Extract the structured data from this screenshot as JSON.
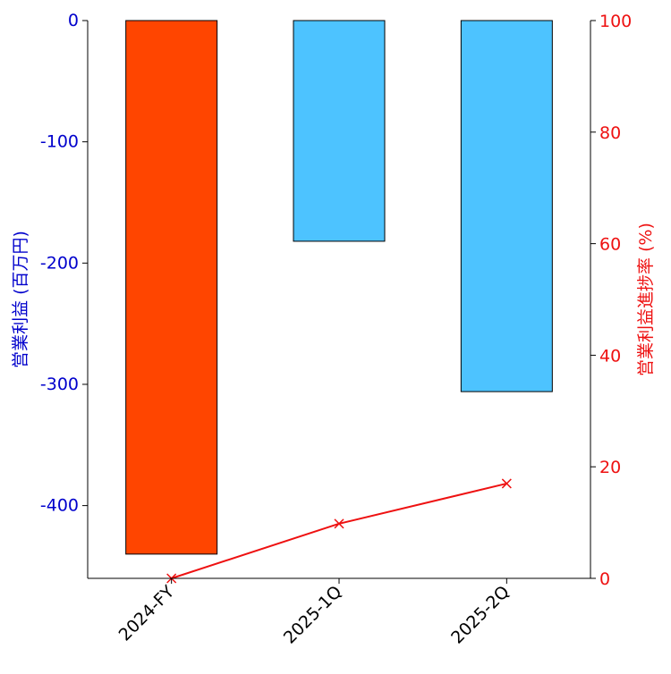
{
  "chart_data": {
    "type": "bar",
    "categories": [
      "2024-FY",
      "2025-1Q",
      "2025-2Q"
    ],
    "bars": {
      "values": [
        -440,
        -182,
        -306
      ],
      "colors": [
        "#ff4500",
        "#4dc3ff",
        "#4dc3ff"
      ]
    },
    "line": {
      "values": [
        0,
        9.8,
        17
      ],
      "color": "#ee1111",
      "marker": "x"
    },
    "left_axis": {
      "label": "営業利益 (百万円)",
      "ylim": [
        -460,
        0
      ],
      "ticks": [
        0,
        -100,
        -200,
        -300,
        -400
      ],
      "tick_labels": [
        "0",
        "-100",
        "-200",
        "-300",
        "-400"
      ],
      "color": "#0000cc"
    },
    "right_axis": {
      "label": "営業利益進捗率 (%)",
      "ylim": [
        0,
        100
      ],
      "ticks": [
        0,
        20,
        40,
        60,
        80,
        100
      ],
      "tick_labels": [
        "0",
        "20",
        "40",
        "60",
        "80",
        "100"
      ],
      "color": "#ee1111"
    },
    "grid": false,
    "legend": "none"
  }
}
